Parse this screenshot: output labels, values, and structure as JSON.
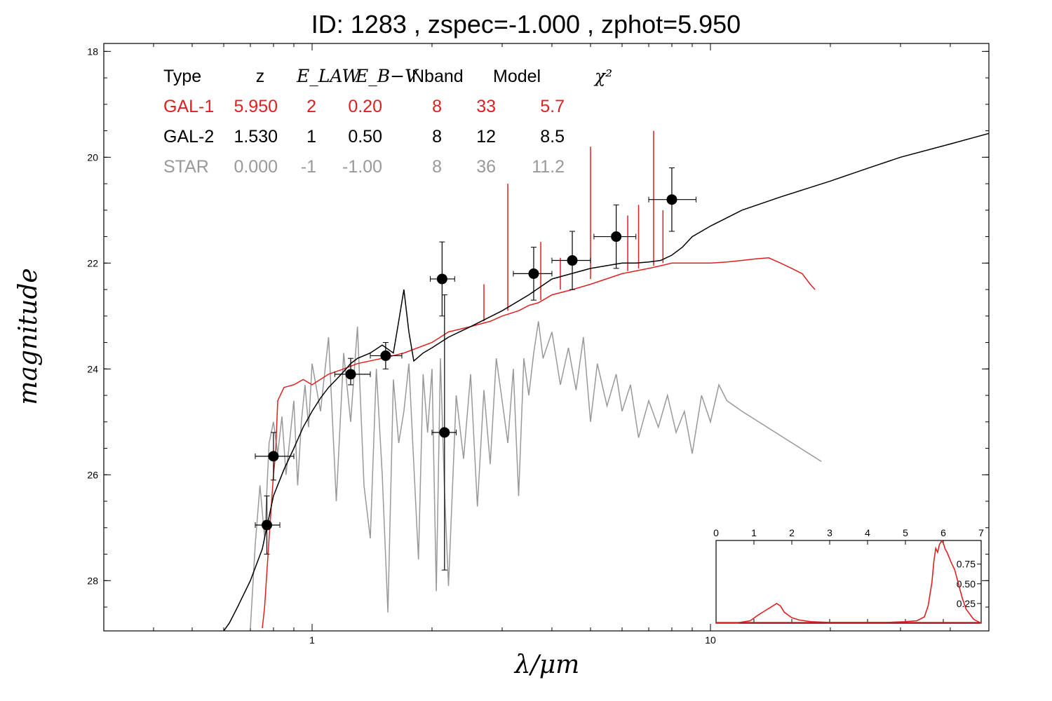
{
  "title": "ID:  1283  , zspec=-1.000 , zphot=5.950",
  "axes": {
    "xlabel": "λ/μm",
    "ylabel": "magnitude",
    "xlim": [
      0.3,
      50
    ],
    "ylim": [
      28.95,
      17.85
    ],
    "xscale": "log",
    "xticks": [
      {
        "value": 1,
        "label": "1"
      },
      {
        "value": 10,
        "label": "10"
      }
    ],
    "yticks": [
      {
        "value": 18,
        "label": "18"
      },
      {
        "value": 20,
        "label": "20"
      },
      {
        "value": 22,
        "label": "22"
      },
      {
        "value": 24,
        "label": "24"
      },
      {
        "value": 26,
        "label": "26"
      },
      {
        "value": 28,
        "label": "28"
      }
    ]
  },
  "table": {
    "header": [
      "Type",
      "z",
      "E_LAW",
      "E_B−V",
      "Nband",
      "Model",
      "χ²"
    ],
    "rows": [
      {
        "type": "GAL-1",
        "z": "5.950",
        "elaw": "2",
        "ebv": "0.20",
        "nband": "8",
        "model": "33",
        "chi2": "5.7",
        "color": "#e02020"
      },
      {
        "type": "GAL-2",
        "z": "1.530",
        "elaw": "1",
        "ebv": "0.50",
        "nband": "8",
        "model": "12",
        "chi2": "8.5",
        "color": "#000000"
      },
      {
        "type": "STAR",
        "z": "0.000",
        "elaw": "-1",
        "ebv": "-1.00",
        "nband": "8",
        "model": "36",
        "chi2": "11.2",
        "color": "#999999"
      }
    ]
  },
  "chart_data": {
    "type": "scatter",
    "xscale": "log",
    "x_unit": "μm",
    "points": [
      {
        "x": 0.77,
        "y": 26.95,
        "xerr": [
          0.72,
          0.83
        ],
        "yerr": [
          26.4,
          27.5
        ]
      },
      {
        "x": 0.8,
        "y": 25.65,
        "xerr": [
          0.72,
          0.9
        ],
        "yerr": [
          25.2,
          26.1
        ]
      },
      {
        "x": 1.25,
        "y": 24.1,
        "xerr": [
          1.14,
          1.4
        ],
        "yerr": [
          23.8,
          24.3
        ]
      },
      {
        "x": 1.53,
        "y": 23.75,
        "xerr": [
          1.4,
          1.68
        ],
        "yerr": [
          23.5,
          24.0
        ]
      },
      {
        "x": 2.12,
        "y": 22.3,
        "xerr": [
          1.98,
          2.28
        ],
        "yerr": [
          21.6,
          23.0
        ]
      },
      {
        "x": 2.15,
        "y": 25.2,
        "xerr": [
          2.0,
          2.3
        ],
        "yerr": [
          22.6,
          27.8
        ]
      },
      {
        "x": 3.6,
        "y": 22.2,
        "xerr": [
          3.2,
          4.0
        ],
        "yerr": [
          21.7,
          22.7
        ]
      },
      {
        "x": 4.5,
        "y": 21.95,
        "xerr": [
          4.0,
          5.0
        ],
        "yerr": [
          21.4,
          22.5
        ]
      },
      {
        "x": 5.8,
        "y": 21.5,
        "xerr": [
          5.1,
          6.5
        ],
        "yerr": [
          20.9,
          22.1
        ]
      },
      {
        "x": 8.0,
        "y": 20.8,
        "xerr": [
          7.0,
          9.2
        ],
        "yerr": [
          20.2,
          21.4
        ]
      }
    ],
    "series": [
      {
        "color": "#e02020",
        "x": [
          0.75,
          0.76,
          0.78,
          0.8,
          0.81,
          0.82,
          0.85,
          0.9,
          0.95,
          1.0,
          1.1,
          1.2,
          1.3,
          1.5,
          1.7,
          2.0,
          2.2,
          2.5,
          2.8,
          3.0,
          3.3,
          3.5,
          3.7,
          4.0,
          4.5,
          5.0,
          6.0,
          7.0,
          7.5,
          8.0,
          9.0,
          10.0,
          11.0,
          12.0,
          13.0,
          14.0,
          15.0,
          16.0,
          17.0,
          17.4,
          17.8,
          18.3
        ],
        "y": [
          28.9,
          28.5,
          27.2,
          26.0,
          25.6,
          24.6,
          24.35,
          24.3,
          24.2,
          24.3,
          24.1,
          24.0,
          23.9,
          23.8,
          23.7,
          23.5,
          23.3,
          23.2,
          23.1,
          23.0,
          22.9,
          22.8,
          22.75,
          22.6,
          22.5,
          22.4,
          22.2,
          22.1,
          22.05,
          22.0,
          22.0,
          22.0,
          21.98,
          21.95,
          21.92,
          21.9,
          22.0,
          22.1,
          22.2,
          22.3,
          22.4,
          22.5
        ]
      },
      {
        "color": "#e02020",
        "spikes": [
          {
            "x": 3.1,
            "y0": 22.9,
            "y1": 20.5
          },
          {
            "x": 3.75,
            "y0": 22.7,
            "y1": 21.6
          },
          {
            "x": 5.0,
            "y0": 22.3,
            "y1": 19.8
          },
          {
            "x": 6.2,
            "y0": 22.15,
            "y1": 21.1
          },
          {
            "x": 6.6,
            "y0": 22.1,
            "y1": 20.9
          },
          {
            "x": 7.2,
            "y0": 22.05,
            "y1": 19.5
          },
          {
            "x": 7.6,
            "y0": 22.0,
            "y1": 21.0
          },
          {
            "x": 2.7,
            "y0": 23.1,
            "y1": 22.4
          },
          {
            "x": 4.2,
            "y0": 22.5,
            "y1": 21.9
          }
        ]
      },
      {
        "color": "#000000",
        "x": [
          0.6,
          0.62,
          0.65,
          0.7,
          0.75,
          0.8,
          0.85,
          0.9,
          0.95,
          1.0,
          1.05,
          1.1,
          1.15,
          1.2,
          1.25,
          1.3,
          1.4,
          1.5,
          1.6,
          1.65,
          1.7,
          1.75,
          1.8,
          1.9,
          2.0,
          2.2,
          2.5,
          3.0,
          3.5,
          4.0,
          5.0,
          6.0,
          6.5,
          7.0,
          7.5,
          8.0,
          8.5,
          9.0,
          10.0,
          12.0,
          15.0,
          20.0,
          25.0,
          30.0,
          40.0,
          50.0
        ],
        "y": [
          28.95,
          28.8,
          28.5,
          28.0,
          27.4,
          26.4,
          25.9,
          25.5,
          25.1,
          24.8,
          24.55,
          24.35,
          24.2,
          24.05,
          23.9,
          23.8,
          23.7,
          23.55,
          23.7,
          23.1,
          22.5,
          23.3,
          23.85,
          23.7,
          23.6,
          23.4,
          23.2,
          22.9,
          22.6,
          22.3,
          22.1,
          22.0,
          22.0,
          21.98,
          21.95,
          21.85,
          21.7,
          21.5,
          21.3,
          21.0,
          20.75,
          20.45,
          20.2,
          20.0,
          19.75,
          19.55
        ]
      },
      {
        "color": "#999999",
        "x": [
          0.7,
          0.72,
          0.74,
          0.76,
          0.78,
          0.8,
          0.82,
          0.84,
          0.86,
          0.88,
          0.9,
          0.92,
          0.94,
          0.96,
          0.98,
          1.0,
          1.05,
          1.1,
          1.15,
          1.2,
          1.25,
          1.3,
          1.35,
          1.4,
          1.45,
          1.5,
          1.55,
          1.6,
          1.65,
          1.7,
          1.75,
          1.8,
          1.85,
          1.9,
          1.95,
          2.0,
          2.05,
          2.1,
          2.15,
          2.2,
          2.3,
          2.4,
          2.5,
          2.6,
          2.7,
          2.8,
          2.9,
          3.0,
          3.1,
          3.2,
          3.3,
          3.4,
          3.5,
          3.6,
          3.7,
          3.8,
          4.0,
          4.2,
          4.4,
          4.6,
          4.8,
          5.0,
          5.2,
          5.5,
          5.8,
          6.0,
          6.3,
          6.6,
          7.0,
          7.4,
          7.8,
          8.2,
          8.6,
          9.0,
          9.5,
          10.0,
          10.5,
          11.0,
          12.0,
          19.0
        ],
        "y": [
          28.9,
          27.3,
          26.2,
          27.2,
          25.4,
          25.0,
          25.6,
          24.9,
          26.0,
          25.3,
          24.6,
          26.2,
          25.0,
          24.3,
          25.1,
          23.9,
          24.8,
          23.4,
          26.5,
          23.7,
          25.0,
          23.2,
          26.2,
          27.2,
          24.0,
          26.0,
          28.6,
          24.2,
          25.4,
          24.8,
          23.9,
          25.8,
          27.6,
          24.1,
          25.2,
          24.0,
          28.2,
          23.8,
          26.3,
          28.1,
          24.5,
          25.7,
          24.1,
          26.6,
          24.4,
          25.8,
          23.8,
          24.6,
          25.4,
          24.0,
          26.4,
          23.8,
          24.5,
          23.7,
          23.1,
          23.8,
          23.3,
          24.3,
          23.6,
          24.4,
          23.4,
          25.0,
          23.9,
          24.7,
          24.1,
          24.8,
          24.3,
          25.3,
          24.6,
          25.1,
          24.5,
          25.2,
          24.8,
          25.6,
          24.5,
          25.0,
          24.3,
          24.6,
          24.8,
          25.75
        ]
      }
    ],
    "inset": {
      "type": "line",
      "xlim": [
        0,
        7
      ],
      "ylim": [
        0,
        1.05
      ],
      "xticks": [
        "0",
        "1",
        "2",
        "3",
        "4",
        "5",
        "6",
        "7"
      ],
      "yticks": [
        {
          "value": 0.25,
          "label": "0.25"
        },
        {
          "value": 0.5,
          "label": "0.50"
        },
        {
          "value": 0.75,
          "label": "0.75"
        }
      ],
      "color": "#e02020",
      "x": [
        0,
        0.5,
        0.9,
        1.1,
        1.3,
        1.5,
        1.6,
        1.7,
        1.8,
        2.0,
        2.2,
        2.5,
        3.0,
        3.5,
        4.0,
        4.5,
        5.0,
        5.3,
        5.5,
        5.6,
        5.7,
        5.75,
        5.8,
        5.85,
        5.9,
        5.95,
        6.0,
        6.05,
        6.1,
        6.2,
        6.3,
        6.4,
        6.5,
        6.6,
        6.8,
        7.0
      ],
      "y": [
        0,
        0.0,
        0.03,
        0.1,
        0.16,
        0.22,
        0.25,
        0.22,
        0.14,
        0.07,
        0.04,
        0.02,
        0.01,
        0.01,
        0.01,
        0.01,
        0.02,
        0.03,
        0.08,
        0.22,
        0.52,
        0.78,
        0.95,
        0.9,
        1.0,
        1.04,
        1.02,
        0.94,
        0.9,
        0.78,
        0.68,
        0.5,
        0.32,
        0.18,
        0.05,
        0.0
      ]
    }
  }
}
